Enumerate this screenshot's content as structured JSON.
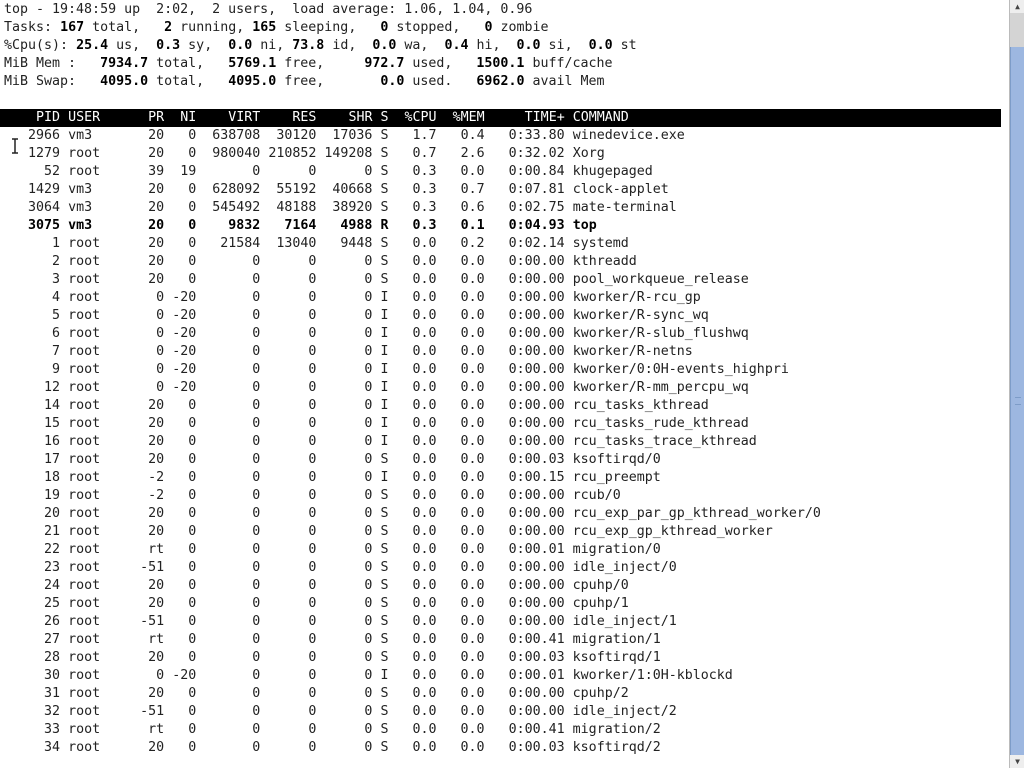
{
  "summary": {
    "line1": "top - 19:48:59 up  2:02,  2 users,  load average: 1.06, 1.04, 0.96",
    "tasks": {
      "label": "Tasks:",
      "total": "167",
      "running": "2",
      "sleeping": "165",
      "stopped": "0",
      "zombie": "0"
    },
    "cpu": {
      "label": "%Cpu(s):",
      "us": "25.4",
      "sy": "0.3",
      "ni": "0.0",
      "id": "73.8",
      "wa": "0.0",
      "hi": "0.4",
      "si": "0.0",
      "st": "0.0"
    },
    "mem": {
      "label": "MiB Mem :",
      "total": "7934.7",
      "free": "5769.1",
      "used": "972.7",
      "buff_cache": "1500.1"
    },
    "swap": {
      "label": "MiB Swap:",
      "total": "4095.0",
      "free": "4095.0",
      "used": "0.0",
      "avail": "6962.0"
    }
  },
  "columns": [
    "PID",
    "USER",
    "PR",
    "NI",
    "VIRT",
    "RES",
    "SHR",
    "S",
    "%CPU",
    "%MEM",
    "TIME+",
    "COMMAND"
  ],
  "processes": [
    [
      "2966",
      "vm3",
      "20",
      "0",
      "638708",
      "30120",
      "17036",
      "S",
      "1.7",
      "0.4",
      "0:33.80",
      "winedevice.exe"
    ],
    [
      "1279",
      "root",
      "20",
      "0",
      "980040",
      "210852",
      "149208",
      "S",
      "0.7",
      "2.6",
      "0:32.02",
      "Xorg"
    ],
    [
      "52",
      "root",
      "39",
      "19",
      "0",
      "0",
      "0",
      "S",
      "0.3",
      "0.0",
      "0:00.84",
      "khugepaged"
    ],
    [
      "1429",
      "vm3",
      "20",
      "0",
      "628092",
      "55192",
      "40668",
      "S",
      "0.3",
      "0.7",
      "0:07.81",
      "clock-applet"
    ],
    [
      "3064",
      "vm3",
      "20",
      "0",
      "545492",
      "48188",
      "38920",
      "S",
      "0.3",
      "0.6",
      "0:02.75",
      "mate-terminal"
    ],
    [
      "3075",
      "vm3",
      "20",
      "0",
      "9832",
      "7164",
      "4988",
      "R",
      "0.3",
      "0.1",
      "0:04.93",
      "top"
    ],
    [
      "1",
      "root",
      "20",
      "0",
      "21584",
      "13040",
      "9448",
      "S",
      "0.0",
      "0.2",
      "0:02.14",
      "systemd"
    ],
    [
      "2",
      "root",
      "20",
      "0",
      "0",
      "0",
      "0",
      "S",
      "0.0",
      "0.0",
      "0:00.00",
      "kthreadd"
    ],
    [
      "3",
      "root",
      "20",
      "0",
      "0",
      "0",
      "0",
      "S",
      "0.0",
      "0.0",
      "0:00.00",
      "pool_workqueue_release"
    ],
    [
      "4",
      "root",
      "0",
      "-20",
      "0",
      "0",
      "0",
      "I",
      "0.0",
      "0.0",
      "0:00.00",
      "kworker/R-rcu_gp"
    ],
    [
      "5",
      "root",
      "0",
      "-20",
      "0",
      "0",
      "0",
      "I",
      "0.0",
      "0.0",
      "0:00.00",
      "kworker/R-sync_wq"
    ],
    [
      "6",
      "root",
      "0",
      "-20",
      "0",
      "0",
      "0",
      "I",
      "0.0",
      "0.0",
      "0:00.00",
      "kworker/R-slub_flushwq"
    ],
    [
      "7",
      "root",
      "0",
      "-20",
      "0",
      "0",
      "0",
      "I",
      "0.0",
      "0.0",
      "0:00.00",
      "kworker/R-netns"
    ],
    [
      "9",
      "root",
      "0",
      "-20",
      "0",
      "0",
      "0",
      "I",
      "0.0",
      "0.0",
      "0:00.00",
      "kworker/0:0H-events_highpri"
    ],
    [
      "12",
      "root",
      "0",
      "-20",
      "0",
      "0",
      "0",
      "I",
      "0.0",
      "0.0",
      "0:00.00",
      "kworker/R-mm_percpu_wq"
    ],
    [
      "14",
      "root",
      "20",
      "0",
      "0",
      "0",
      "0",
      "I",
      "0.0",
      "0.0",
      "0:00.00",
      "rcu_tasks_kthread"
    ],
    [
      "15",
      "root",
      "20",
      "0",
      "0",
      "0",
      "0",
      "I",
      "0.0",
      "0.0",
      "0:00.00",
      "rcu_tasks_rude_kthread"
    ],
    [
      "16",
      "root",
      "20",
      "0",
      "0",
      "0",
      "0",
      "I",
      "0.0",
      "0.0",
      "0:00.00",
      "rcu_tasks_trace_kthread"
    ],
    [
      "17",
      "root",
      "20",
      "0",
      "0",
      "0",
      "0",
      "S",
      "0.0",
      "0.0",
      "0:00.03",
      "ksoftirqd/0"
    ],
    [
      "18",
      "root",
      "-2",
      "0",
      "0",
      "0",
      "0",
      "I",
      "0.0",
      "0.0",
      "0:00.15",
      "rcu_preempt"
    ],
    [
      "19",
      "root",
      "-2",
      "0",
      "0",
      "0",
      "0",
      "S",
      "0.0",
      "0.0",
      "0:00.00",
      "rcub/0"
    ],
    [
      "20",
      "root",
      "20",
      "0",
      "0",
      "0",
      "0",
      "S",
      "0.0",
      "0.0",
      "0:00.00",
      "rcu_exp_par_gp_kthread_worker/0"
    ],
    [
      "21",
      "root",
      "20",
      "0",
      "0",
      "0",
      "0",
      "S",
      "0.0",
      "0.0",
      "0:00.00",
      "rcu_exp_gp_kthread_worker"
    ],
    [
      "22",
      "root",
      "rt",
      "0",
      "0",
      "0",
      "0",
      "S",
      "0.0",
      "0.0",
      "0:00.01",
      "migration/0"
    ],
    [
      "23",
      "root",
      "-51",
      "0",
      "0",
      "0",
      "0",
      "S",
      "0.0",
      "0.0",
      "0:00.00",
      "idle_inject/0"
    ],
    [
      "24",
      "root",
      "20",
      "0",
      "0",
      "0",
      "0",
      "S",
      "0.0",
      "0.0",
      "0:00.00",
      "cpuhp/0"
    ],
    [
      "25",
      "root",
      "20",
      "0",
      "0",
      "0",
      "0",
      "S",
      "0.0",
      "0.0",
      "0:00.00",
      "cpuhp/1"
    ],
    [
      "26",
      "root",
      "-51",
      "0",
      "0",
      "0",
      "0",
      "S",
      "0.0",
      "0.0",
      "0:00.00",
      "idle_inject/1"
    ],
    [
      "27",
      "root",
      "rt",
      "0",
      "0",
      "0",
      "0",
      "S",
      "0.0",
      "0.0",
      "0:00.41",
      "migration/1"
    ],
    [
      "28",
      "root",
      "20",
      "0",
      "0",
      "0",
      "0",
      "S",
      "0.0",
      "0.0",
      "0:00.03",
      "ksoftirqd/1"
    ],
    [
      "30",
      "root",
      "0",
      "-20",
      "0",
      "0",
      "0",
      "I",
      "0.0",
      "0.0",
      "0:00.01",
      "kworker/1:0H-kblockd"
    ],
    [
      "31",
      "root",
      "20",
      "0",
      "0",
      "0",
      "0",
      "S",
      "0.0",
      "0.0",
      "0:00.00",
      "cpuhp/2"
    ],
    [
      "32",
      "root",
      "-51",
      "0",
      "0",
      "0",
      "0",
      "S",
      "0.0",
      "0.0",
      "0:00.00",
      "idle_inject/2"
    ],
    [
      "33",
      "root",
      "rt",
      "0",
      "0",
      "0",
      "0",
      "S",
      "0.0",
      "0.0",
      "0:00.41",
      "migration/2"
    ],
    [
      "34",
      "root",
      "20",
      "0",
      "0",
      "0",
      "0",
      "S",
      "0.0",
      "0.0",
      "0:00.03",
      "ksoftirqd/2"
    ]
  ],
  "highlighted_pid": "3075",
  "icons": {
    "cursor": "text-cursor-icon",
    "scroll_up": "arrow-up-icon",
    "scroll_down": "arrow-down-icon"
  },
  "colors": {
    "header_bg": "#000000",
    "header_fg": "#ffffff",
    "scroll_thumb": "#9db7e0"
  }
}
